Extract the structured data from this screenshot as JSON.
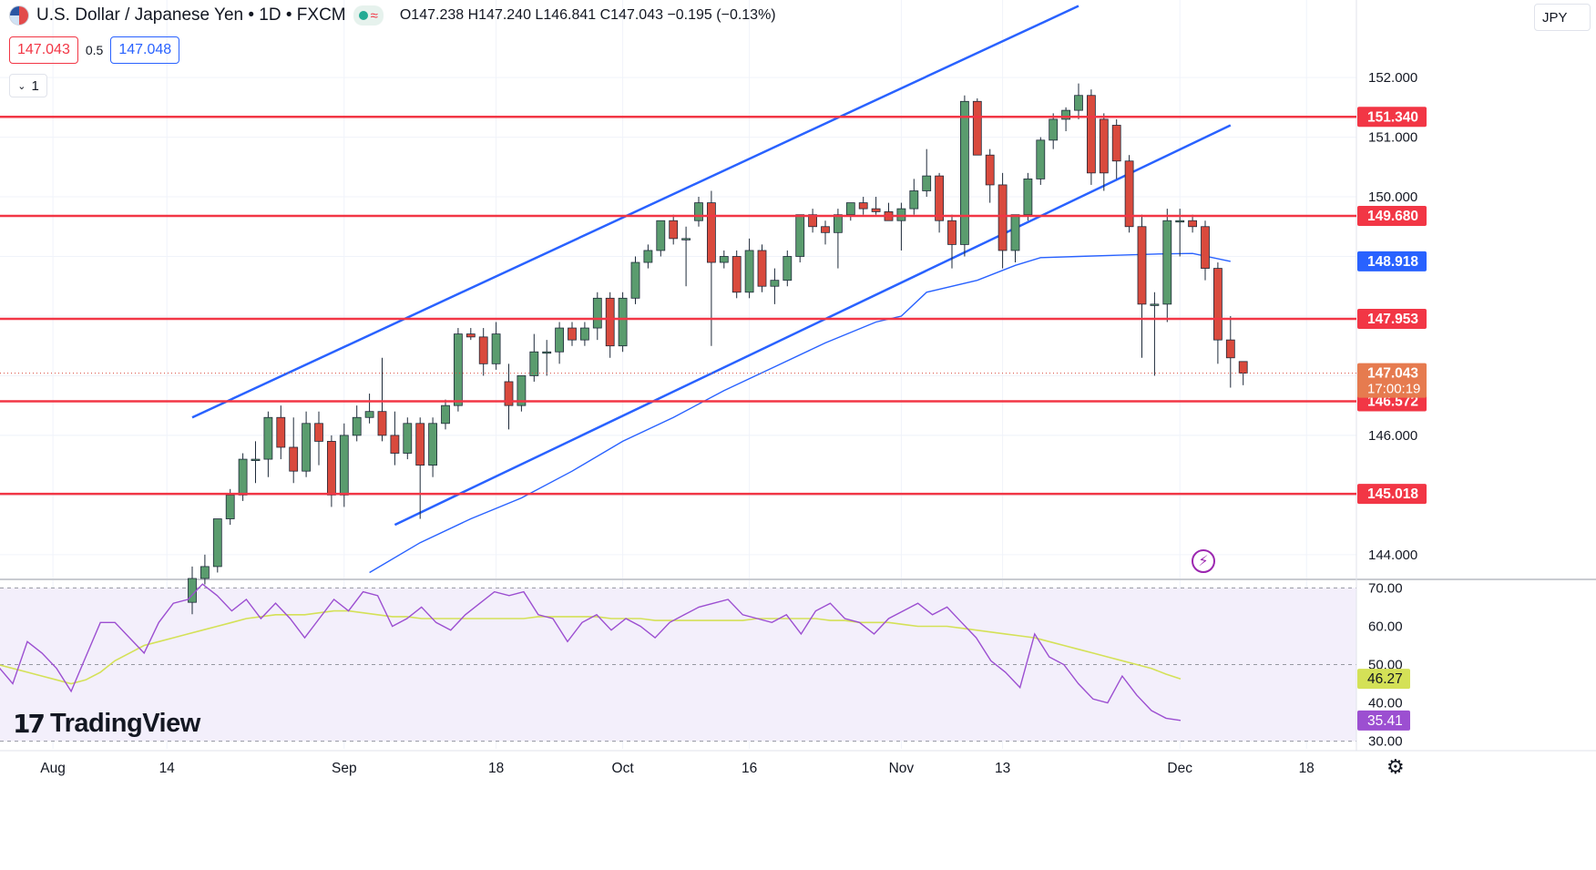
{
  "header": {
    "symbol": "U.S. Dollar / Japanese Yen • 1D • FXCM",
    "ohlc": "O147.238  H147.240  L146.841  C147.043  −0.195 (−0.13%)"
  },
  "trade": {
    "sell": "147.043",
    "spread": "0.5",
    "buy": "147.048",
    "lots": "1"
  },
  "currency": "JPY",
  "logo": {
    "mark": "17",
    "name": "TradingView"
  },
  "colors": {
    "up": "#5a9c6e",
    "down": "#d94a3d",
    "channel": "#2962ff",
    "level": "#f23645",
    "rsi": "#9c4fd1",
    "rsi_ma": "#d4e157",
    "ma": "#2962ff"
  },
  "chart_data": {
    "type": "candlestick",
    "ylim": [
      143.6,
      153.3
    ],
    "y_ticks": [
      144,
      146,
      150,
      151,
      152
    ],
    "y_tick_labels": [
      "144.000",
      "146.000",
      "150.000",
      "151.000",
      "152.000"
    ],
    "x_tick_labels": [
      {
        "i": -11,
        "label": "Aug"
      },
      {
        "i": -2,
        "label": "14"
      },
      {
        "i": 12,
        "label": "Sep"
      },
      {
        "i": 24,
        "label": "18"
      },
      {
        "i": 34,
        "label": "Oct"
      },
      {
        "i": 44,
        "label": "16"
      },
      {
        "i": 56,
        "label": "Nov"
      },
      {
        "i": 64,
        "label": "13"
      },
      {
        "i": 78,
        "label": "Dec"
      },
      {
        "i": 88,
        "label": "18"
      }
    ],
    "candles": [
      {
        "o": 143.2,
        "h": 143.8,
        "l": 143.0,
        "c": 143.6
      },
      {
        "o": 143.6,
        "h": 144.0,
        "l": 143.5,
        "c": 143.8
      },
      {
        "o": 143.8,
        "h": 144.6,
        "l": 143.7,
        "c": 144.6
      },
      {
        "o": 144.6,
        "h": 145.1,
        "l": 144.5,
        "c": 145.0
      },
      {
        "o": 145.0,
        "h": 145.7,
        "l": 144.9,
        "c": 145.6
      },
      {
        "o": 145.6,
        "h": 145.9,
        "l": 145.2,
        "c": 145.6
      },
      {
        "o": 145.6,
        "h": 146.4,
        "l": 145.3,
        "c": 146.3
      },
      {
        "o": 146.3,
        "h": 146.5,
        "l": 145.6,
        "c": 145.8
      },
      {
        "o": 145.8,
        "h": 146.3,
        "l": 145.2,
        "c": 145.4
      },
      {
        "o": 145.4,
        "h": 146.4,
        "l": 145.3,
        "c": 146.2
      },
      {
        "o": 146.2,
        "h": 146.4,
        "l": 145.5,
        "c": 145.9
      },
      {
        "o": 145.9,
        "h": 146.0,
        "l": 144.8,
        "c": 145.0
      },
      {
        "o": 145.0,
        "h": 146.2,
        "l": 144.8,
        "c": 146.0
      },
      {
        "o": 146.0,
        "h": 146.5,
        "l": 145.9,
        "c": 146.3
      },
      {
        "o": 146.3,
        "h": 146.7,
        "l": 146.2,
        "c": 146.4
      },
      {
        "o": 146.4,
        "h": 147.3,
        "l": 145.9,
        "c": 146.0
      },
      {
        "o": 146.0,
        "h": 146.4,
        "l": 145.5,
        "c": 145.7
      },
      {
        "o": 145.7,
        "h": 146.3,
        "l": 145.6,
        "c": 146.2
      },
      {
        "o": 146.2,
        "h": 146.3,
        "l": 144.6,
        "c": 145.5
      },
      {
        "o": 145.5,
        "h": 146.3,
        "l": 145.3,
        "c": 146.2
      },
      {
        "o": 146.2,
        "h": 146.6,
        "l": 146.1,
        "c": 146.5
      },
      {
        "o": 146.5,
        "h": 147.8,
        "l": 146.4,
        "c": 147.7
      },
      {
        "o": 147.7,
        "h": 147.8,
        "l": 147.6,
        "c": 147.65
      },
      {
        "o": 147.65,
        "h": 147.8,
        "l": 147.0,
        "c": 147.2
      },
      {
        "o": 147.2,
        "h": 147.9,
        "l": 147.1,
        "c": 147.7
      },
      {
        "o": 146.9,
        "h": 147.2,
        "l": 146.1,
        "c": 146.5
      },
      {
        "o": 146.5,
        "h": 147.0,
        "l": 146.4,
        "c": 147.0
      },
      {
        "o": 147.0,
        "h": 147.7,
        "l": 146.9,
        "c": 147.4
      },
      {
        "o": 147.4,
        "h": 147.6,
        "l": 147.0,
        "c": 147.4
      },
      {
        "o": 147.4,
        "h": 147.9,
        "l": 147.2,
        "c": 147.8
      },
      {
        "o": 147.8,
        "h": 147.9,
        "l": 147.5,
        "c": 147.6
      },
      {
        "o": 147.6,
        "h": 147.9,
        "l": 147.5,
        "c": 147.8
      },
      {
        "o": 147.8,
        "h": 148.4,
        "l": 147.6,
        "c": 148.3
      },
      {
        "o": 148.3,
        "h": 148.4,
        "l": 147.3,
        "c": 147.5
      },
      {
        "o": 147.5,
        "h": 148.4,
        "l": 147.4,
        "c": 148.3
      },
      {
        "o": 148.3,
        "h": 149.0,
        "l": 148.2,
        "c": 148.9
      },
      {
        "o": 148.9,
        "h": 149.2,
        "l": 148.8,
        "c": 149.1
      },
      {
        "o": 149.1,
        "h": 149.6,
        "l": 149.0,
        "c": 149.6
      },
      {
        "o": 149.6,
        "h": 149.7,
        "l": 149.2,
        "c": 149.3
      },
      {
        "o": 149.3,
        "h": 149.5,
        "l": 148.5,
        "c": 149.3
      },
      {
        "o": 149.6,
        "h": 150.0,
        "l": 149.5,
        "c": 149.9
      },
      {
        "o": 149.9,
        "h": 150.1,
        "l": 147.5,
        "c": 148.9
      },
      {
        "o": 148.9,
        "h": 149.1,
        "l": 148.8,
        "c": 149.0
      },
      {
        "o": 149.0,
        "h": 149.1,
        "l": 148.3,
        "c": 148.4
      },
      {
        "o": 148.4,
        "h": 149.3,
        "l": 148.3,
        "c": 149.1
      },
      {
        "o": 149.1,
        "h": 149.2,
        "l": 148.4,
        "c": 148.5
      },
      {
        "o": 148.5,
        "h": 148.8,
        "l": 148.2,
        "c": 148.6
      },
      {
        "o": 148.6,
        "h": 149.1,
        "l": 148.5,
        "c": 149.0
      },
      {
        "o": 149.0,
        "h": 149.7,
        "l": 148.9,
        "c": 149.7
      },
      {
        "o": 149.7,
        "h": 149.8,
        "l": 149.4,
        "c": 149.5
      },
      {
        "o": 149.5,
        "h": 149.6,
        "l": 149.2,
        "c": 149.4
      },
      {
        "o": 149.4,
        "h": 149.8,
        "l": 148.8,
        "c": 149.7
      },
      {
        "o": 149.7,
        "h": 149.9,
        "l": 149.6,
        "c": 149.9
      },
      {
        "o": 149.9,
        "h": 150.0,
        "l": 149.7,
        "c": 149.8
      },
      {
        "o": 149.8,
        "h": 150.0,
        "l": 149.7,
        "c": 149.75
      },
      {
        "o": 149.75,
        "h": 149.9,
        "l": 149.6,
        "c": 149.6
      },
      {
        "o": 149.6,
        "h": 149.9,
        "l": 149.1,
        "c": 149.8
      },
      {
        "o": 149.8,
        "h": 150.3,
        "l": 149.7,
        "c": 150.1
      },
      {
        "o": 150.1,
        "h": 150.8,
        "l": 150.0,
        "c": 150.35
      },
      {
        "o": 150.35,
        "h": 150.4,
        "l": 149.4,
        "c": 149.6
      },
      {
        "o": 149.6,
        "h": 149.7,
        "l": 148.8,
        "c": 149.2
      },
      {
        "o": 149.2,
        "h": 151.7,
        "l": 149.0,
        "c": 151.6
      },
      {
        "o": 151.6,
        "h": 151.65,
        "l": 150.7,
        "c": 150.7
      },
      {
        "o": 150.7,
        "h": 150.8,
        "l": 149.9,
        "c": 150.2
      },
      {
        "o": 150.2,
        "h": 150.4,
        "l": 148.8,
        "c": 149.1
      },
      {
        "o": 149.1,
        "h": 149.7,
        "l": 148.9,
        "c": 149.7
      },
      {
        "o": 149.7,
        "h": 150.4,
        "l": 149.6,
        "c": 150.3
      },
      {
        "o": 150.3,
        "h": 151.0,
        "l": 150.2,
        "c": 150.95
      },
      {
        "o": 150.95,
        "h": 151.4,
        "l": 150.8,
        "c": 151.3
      },
      {
        "o": 151.3,
        "h": 151.5,
        "l": 151.1,
        "c": 151.45
      },
      {
        "o": 151.45,
        "h": 151.9,
        "l": 151.3,
        "c": 151.7
      },
      {
        "o": 151.7,
        "h": 151.8,
        "l": 150.2,
        "c": 150.4
      },
      {
        "o": 151.3,
        "h": 151.4,
        "l": 150.1,
        "c": 150.4
      },
      {
        "o": 151.2,
        "h": 151.3,
        "l": 150.3,
        "c": 150.6
      },
      {
        "o": 150.6,
        "h": 150.7,
        "l": 149.4,
        "c": 149.5
      },
      {
        "o": 149.5,
        "h": 149.7,
        "l": 147.3,
        "c": 148.2
      },
      {
        "o": 148.2,
        "h": 148.4,
        "l": 147.0,
        "c": 148.2
      },
      {
        "o": 148.2,
        "h": 149.8,
        "l": 147.9,
        "c": 149.6
      },
      {
        "o": 149.6,
        "h": 149.8,
        "l": 149.0,
        "c": 149.6
      },
      {
        "o": 149.6,
        "h": 149.7,
        "l": 149.4,
        "c": 149.5
      },
      {
        "o": 149.5,
        "h": 149.6,
        "l": 148.6,
        "c": 148.8
      },
      {
        "o": 148.8,
        "h": 148.9,
        "l": 147.2,
        "c": 147.6
      },
      {
        "o": 147.6,
        "h": 148.0,
        "l": 146.8,
        "c": 147.3
      },
      {
        "o": 147.238,
        "h": 147.24,
        "l": 146.841,
        "c": 147.043
      }
    ],
    "ma_line": [
      {
        "i": 14,
        "v": 143.7
      },
      {
        "i": 18,
        "v": 144.2
      },
      {
        "i": 22,
        "v": 144.6
      },
      {
        "i": 26,
        "v": 144.95
      },
      {
        "i": 30,
        "v": 145.4
      },
      {
        "i": 34,
        "v": 145.9
      },
      {
        "i": 38,
        "v": 146.3
      },
      {
        "i": 42,
        "v": 146.75
      },
      {
        "i": 46,
        "v": 147.15
      },
      {
        "i": 50,
        "v": 147.55
      },
      {
        "i": 54,
        "v": 147.9
      },
      {
        "i": 56,
        "v": 148.0
      },
      {
        "i": 58,
        "v": 148.4
      },
      {
        "i": 62,
        "v": 148.6
      },
      {
        "i": 65,
        "v": 148.85
      },
      {
        "i": 67,
        "v": 148.98
      },
      {
        "i": 70,
        "v": 149.0
      },
      {
        "i": 73,
        "v": 149.02
      },
      {
        "i": 76,
        "v": 149.04
      },
      {
        "i": 79,
        "v": 149.05
      },
      {
        "i": 82,
        "v": 148.918
      }
    ],
    "channel_upper": [
      {
        "i": 0,
        "v": 146.3
      },
      {
        "i": 70,
        "v": 153.2
      }
    ],
    "channel_lower": [
      {
        "i": 16,
        "v": 144.5
      },
      {
        "i": 82,
        "v": 151.2
      }
    ],
    "levels": [
      {
        "label": "151.340",
        "v": 151.34
      },
      {
        "label": "149.680",
        "v": 149.68
      },
      {
        "label": "147.953",
        "v": 147.953
      },
      {
        "label": "146.572",
        "v": 146.572
      },
      {
        "label": "145.018",
        "v": 145.018
      }
    ],
    "current_price": {
      "label": "147.043",
      "countdown": "17:00:19",
      "v": 147.043
    },
    "ma_label": {
      "label": "148.918",
      "v": 148.918
    },
    "rsi": {
      "ylim": [
        28,
        72
      ],
      "ticks": [
        30,
        40,
        50,
        60,
        70
      ],
      "tick_labels": [
        "30.00",
        "40.00",
        "50.00",
        "60.00",
        "70.00"
      ],
      "band": [
        30,
        70
      ],
      "values": [
        49.5,
        45,
        56,
        53,
        49,
        43,
        52,
        61,
        61,
        57,
        53,
        61,
        66,
        67,
        71,
        68,
        64,
        67,
        62,
        66,
        62,
        57,
        62,
        67,
        64,
        69,
        68,
        60,
        62,
        65,
        61,
        59,
        63,
        66,
        69,
        68,
        69,
        63,
        62,
        56,
        61,
        63,
        59,
        62,
        60,
        57,
        61,
        63,
        65,
        66,
        67,
        63,
        62,
        61,
        63,
        58,
        64,
        66,
        62,
        61,
        58,
        62,
        64,
        66,
        63,
        65,
        61,
        57,
        51,
        48,
        44,
        58,
        52,
        50,
        45,
        41,
        40,
        47,
        42,
        38,
        36,
        35.41
      ],
      "ma_values": [
        50,
        49,
        48,
        47,
        46,
        45,
        46,
        48,
        51,
        53,
        55,
        56,
        57,
        58,
        59,
        60,
        61,
        62,
        62.5,
        63,
        63,
        63,
        63.5,
        64,
        64,
        63.5,
        63,
        62.5,
        62.5,
        62,
        62,
        62,
        62,
        62,
        62,
        62,
        62,
        62.5,
        62.5,
        62.5,
        62.5,
        62.5,
        62,
        62,
        62,
        61.5,
        61.5,
        61.5,
        61.5,
        61.5,
        61.5,
        61.5,
        62,
        62,
        62,
        62,
        62,
        61.5,
        61.5,
        61,
        61,
        61,
        60.5,
        60,
        60,
        60,
        59.5,
        59,
        58.5,
        58,
        57.5,
        57,
        56,
        55,
        54,
        53,
        52,
        51,
        50,
        49,
        47.5,
        46.27
      ],
      "rsi_label": "35.41",
      "ma_label": "46.27"
    }
  }
}
